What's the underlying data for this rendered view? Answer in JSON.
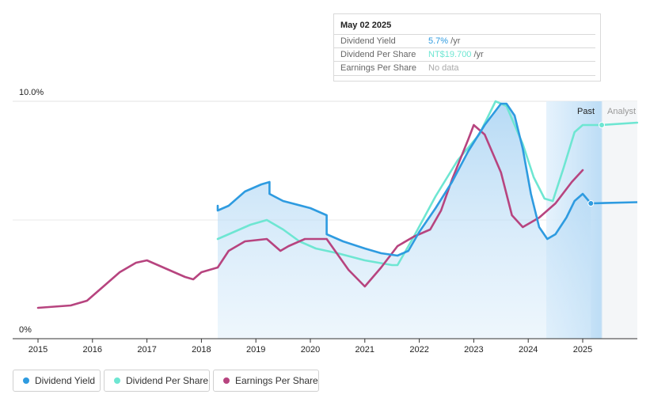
{
  "tooltip": {
    "date": "May 02 2025",
    "rows": [
      {
        "label": "Dividend Yield",
        "value": "5.7%",
        "unit": " /yr",
        "color": "#2E9BE0"
      },
      {
        "label": "Dividend Per Share",
        "value": "NT$19.700",
        "unit": " /yr",
        "color": "#6EE6D2"
      },
      {
        "label": "Earnings Per Share",
        "value": "No data",
        "unit": "",
        "color": "#aaaaaa"
      }
    ]
  },
  "legend": [
    {
      "label": "Dividend Yield",
      "color": "#2E9BE0"
    },
    {
      "label": "Dividend Per Share",
      "color": "#6EE6D2"
    },
    {
      "label": "Earnings Per Share",
      "color": "#B7447F"
    }
  ],
  "regions": {
    "past": "Past",
    "analyst": "Analyst"
  },
  "chart_data": {
    "type": "line",
    "xlim": [
      2014.55,
      2024.95
    ],
    "ylim": [
      0,
      10
    ],
    "y_tick_labels": [
      "10.0%",
      "0%"
    ],
    "x_ticks": [
      2015,
      2016,
      2017,
      2018,
      2019,
      2020,
      2021,
      2022,
      2023,
      2024,
      2025
    ],
    "x_tick_labels": [
      "2015",
      "2016",
      "2017",
      "2018",
      "2019",
      "2020",
      "2021",
      "2022",
      "2023",
      "2024",
      "2025"
    ],
    "grid": true,
    "past_region": [
      2024.33,
      2024.35
    ],
    "series": [
      {
        "name": "Dividend Yield",
        "color": "#2E9BE0",
        "filled": true,
        "points": [
          [
            2018.3,
            5.6
          ],
          [
            2018.3,
            5.4
          ],
          [
            2018.5,
            5.6
          ],
          [
            2018.8,
            6.2
          ],
          [
            2019.1,
            6.5
          ],
          [
            2019.25,
            6.6
          ],
          [
            2019.25,
            6.1
          ],
          [
            2019.5,
            5.8
          ],
          [
            2020.0,
            5.5
          ],
          [
            2020.3,
            5.2
          ],
          [
            2020.3,
            4.4
          ],
          [
            2020.6,
            4.1
          ],
          [
            2021.0,
            3.8
          ],
          [
            2021.3,
            3.6
          ],
          [
            2021.6,
            3.5
          ],
          [
            2021.8,
            3.7
          ],
          [
            2022.0,
            4.5
          ],
          [
            2022.3,
            5.5
          ],
          [
            2022.6,
            6.6
          ],
          [
            2022.9,
            7.9
          ],
          [
            2023.2,
            9.0
          ],
          [
            2023.5,
            9.9
          ],
          [
            2023.6,
            9.9
          ],
          [
            2023.75,
            9.4
          ],
          [
            2023.9,
            8.0
          ],
          [
            2024.05,
            6.1
          ],
          [
            2024.2,
            4.7
          ],
          [
            2024.35,
            4.2
          ],
          [
            2024.5,
            4.4
          ],
          [
            2024.7,
            5.1
          ],
          [
            2024.85,
            5.8
          ],
          [
            2025.0,
            6.1
          ],
          [
            2025.15,
            5.7
          ]
        ]
      },
      {
        "name": "Dividend Per Share",
        "color": "#6EE6D2",
        "filled": false,
        "points": [
          [
            2018.3,
            4.2
          ],
          [
            2018.6,
            4.5
          ],
          [
            2018.9,
            4.8
          ],
          [
            2019.2,
            5.0
          ],
          [
            2019.5,
            4.6
          ],
          [
            2019.8,
            4.1
          ],
          [
            2020.1,
            3.8
          ],
          [
            2020.5,
            3.6
          ],
          [
            2021.0,
            3.3
          ],
          [
            2021.5,
            3.1
          ],
          [
            2021.6,
            3.1
          ],
          [
            2021.9,
            4.3
          ],
          [
            2022.3,
            6.0
          ],
          [
            2022.7,
            7.5
          ],
          [
            2023.1,
            8.6
          ],
          [
            2023.4,
            10.0
          ],
          [
            2023.6,
            9.8
          ],
          [
            2023.9,
            8.2
          ],
          [
            2024.1,
            6.8
          ],
          [
            2024.3,
            5.9
          ],
          [
            2024.45,
            5.8
          ],
          [
            2024.65,
            7.2
          ],
          [
            2024.85,
            8.7
          ],
          [
            2025.0,
            9.0
          ],
          [
            2025.33,
            9.0
          ],
          [
            2026.0,
            9.1
          ]
        ]
      },
      {
        "name": "Earnings Per Share",
        "color": "#B7447F",
        "filled": false,
        "points": [
          [
            2015.0,
            1.3
          ],
          [
            2015.3,
            1.35
          ],
          [
            2015.6,
            1.4
          ],
          [
            2015.9,
            1.6
          ],
          [
            2016.2,
            2.2
          ],
          [
            2016.5,
            2.8
          ],
          [
            2016.8,
            3.2
          ],
          [
            2017.0,
            3.3
          ],
          [
            2017.2,
            3.1
          ],
          [
            2017.5,
            2.8
          ],
          [
            2017.7,
            2.6
          ],
          [
            2017.85,
            2.5
          ],
          [
            2018.0,
            2.8
          ],
          [
            2018.3,
            3.0
          ],
          [
            2018.5,
            3.7
          ],
          [
            2018.8,
            4.1
          ],
          [
            2019.2,
            4.2
          ],
          [
            2019.45,
            3.7
          ],
          [
            2019.6,
            3.9
          ],
          [
            2019.9,
            4.2
          ],
          [
            2020.3,
            4.2
          ],
          [
            2020.7,
            2.9
          ],
          [
            2021.0,
            2.2
          ],
          [
            2021.3,
            3.0
          ],
          [
            2021.6,
            3.9
          ],
          [
            2021.9,
            4.3
          ],
          [
            2022.2,
            4.6
          ],
          [
            2022.4,
            5.4
          ],
          [
            2022.6,
            6.7
          ],
          [
            2022.9,
            8.4
          ],
          [
            2023.0,
            9.0
          ],
          [
            2023.2,
            8.6
          ],
          [
            2023.5,
            7.0
          ],
          [
            2023.7,
            5.2
          ],
          [
            2023.9,
            4.7
          ],
          [
            2024.2,
            5.1
          ],
          [
            2024.5,
            5.7
          ],
          [
            2024.8,
            6.6
          ],
          [
            2025.0,
            7.1
          ]
        ]
      }
    ]
  }
}
